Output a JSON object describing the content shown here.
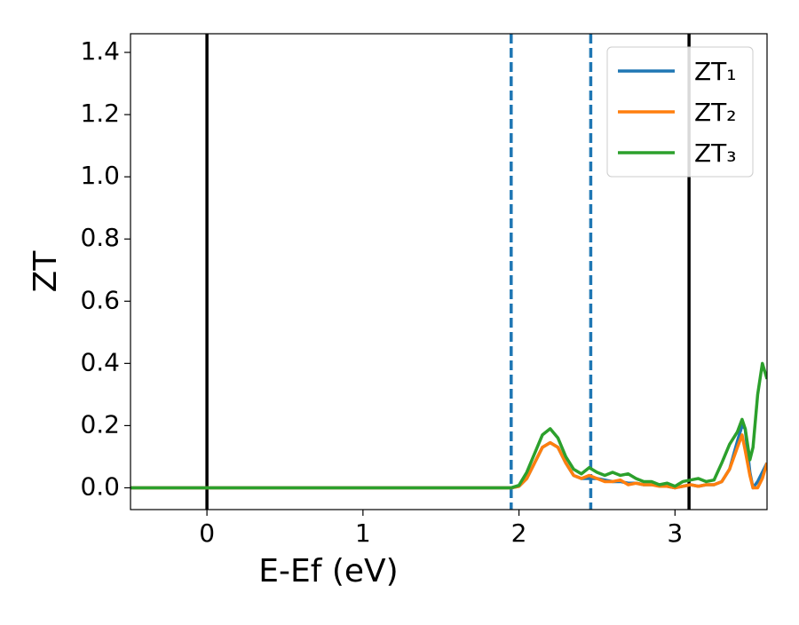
{
  "chart_data": {
    "type": "line",
    "xlabel": "E-Ef (eV)",
    "ylabel": "ZT",
    "x": [
      -0.49,
      1.9,
      1.95,
      2.0,
      2.05,
      2.1,
      2.15,
      2.2,
      2.25,
      2.3,
      2.35,
      2.4,
      2.45,
      2.5,
      2.55,
      2.6,
      2.65,
      2.7,
      2.75,
      2.8,
      2.85,
      2.9,
      2.95,
      3.0,
      3.05,
      3.1,
      3.15,
      3.2,
      3.25,
      3.3,
      3.35,
      3.4,
      3.43,
      3.45,
      3.48,
      3.5,
      3.53,
      3.56,
      3.59
    ],
    "series": [
      {
        "name": "ZT₁",
        "color": "#1f77b4",
        "values": [
          0,
          0,
          0,
          0.005,
          0.03,
          0.08,
          0.13,
          0.145,
          0.13,
          0.08,
          0.04,
          0.03,
          0.03,
          0.03,
          0.025,
          0.02,
          0.02,
          0.015,
          0.015,
          0.01,
          0.01,
          0.01,
          0.005,
          0.0,
          0.005,
          0.01,
          0.005,
          0.01,
          0.01,
          0.02,
          0.06,
          0.15,
          0.2,
          0.19,
          0.05,
          0.0,
          0.02,
          0.05,
          0.08
        ]
      },
      {
        "name": "ZT₂",
        "color": "#ff7f0e",
        "values": [
          0,
          0,
          0,
          0.005,
          0.03,
          0.08,
          0.13,
          0.145,
          0.13,
          0.08,
          0.04,
          0.03,
          0.04,
          0.03,
          0.02,
          0.02,
          0.025,
          0.01,
          0.015,
          0.01,
          0.01,
          0.005,
          0.005,
          0.0,
          0.005,
          0.01,
          0.005,
          0.01,
          0.01,
          0.02,
          0.06,
          0.13,
          0.17,
          0.12,
          0.04,
          0.0,
          0.0,
          0.03,
          0.08
        ]
      },
      {
        "name": "ZT₃",
        "color": "#2ca02c",
        "values": [
          0,
          0,
          0,
          0.008,
          0.05,
          0.11,
          0.17,
          0.19,
          0.16,
          0.1,
          0.06,
          0.045,
          0.065,
          0.05,
          0.04,
          0.05,
          0.04,
          0.045,
          0.03,
          0.02,
          0.02,
          0.01,
          0.015,
          0.005,
          0.02,
          0.025,
          0.03,
          0.02,
          0.025,
          0.08,
          0.14,
          0.18,
          0.22,
          0.19,
          0.09,
          0.13,
          0.3,
          0.4,
          0.35
        ]
      }
    ],
    "vlines": [
      {
        "x": 0,
        "color": "#000000",
        "style": "solid"
      },
      {
        "x": 1.95,
        "color": "#1f77b4",
        "style": "dashed"
      },
      {
        "x": 2.46,
        "color": "#1f77b4",
        "style": "dashed"
      },
      {
        "x": 3.09,
        "color": "#000000",
        "style": "solid"
      }
    ],
    "xlim": [
      -0.49,
      3.59
    ],
    "xticks": [
      0,
      1,
      2,
      3
    ],
    "ylim": [
      -0.07,
      1.46
    ],
    "yticks": [
      {
        "value": 0,
        "label": "0.0"
      },
      {
        "value": 0.2,
        "label": "0.2"
      },
      {
        "value": 0.4,
        "label": "0.4"
      },
      {
        "value": 0.6,
        "label": "0.6"
      },
      {
        "value": 0.8,
        "label": "0.8"
      },
      {
        "value": 1.0,
        "label": "1.0"
      },
      {
        "value": 1.2,
        "label": "1.2"
      },
      {
        "value": 1.4,
        "label": "1.4"
      }
    ],
    "legend": "upper right",
    "grid": false
  }
}
